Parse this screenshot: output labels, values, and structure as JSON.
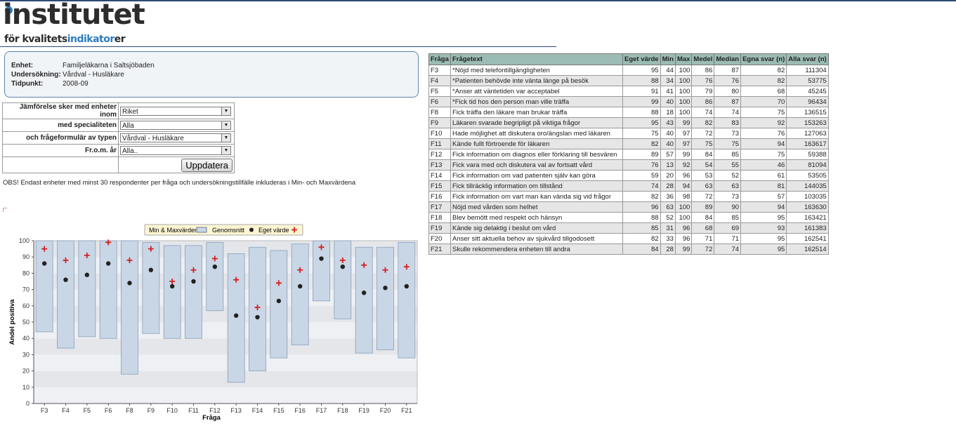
{
  "logo": {
    "top": "institutet",
    "small_prefix": "för kvalitets",
    "small_highlight": "indikator",
    "small_suffix": "er"
  },
  "info": {
    "enhet_label": "Enhet:",
    "enhet": "Familjeläkarna i Saltsjöbaden",
    "undersokning_label": "Undersökning:",
    "undersokning": "Vårdval - Husläkare",
    "tidpunkt_label": "Tidpunkt:",
    "tidpunkt": "2008-09"
  },
  "filters": [
    {
      "label": "Jämförelse sker med enheter inom",
      "value": "Riket"
    },
    {
      "label": "med specialiteten",
      "value": "Alla"
    },
    {
      "label": "och frågeformulär av typen",
      "value": "Vårdval - Husläkare"
    },
    {
      "label": "Fr.o.m. år",
      "value": "Alla.."
    }
  ],
  "update_button": "Uppdatera",
  "note": "OBS! Endast enheter med minst 30 respondenter per fråga och undersökningstillfälle inkluderas i Min- och Maxvärdena",
  "chart_data": {
    "type": "bar",
    "legend": [
      "Min & Maxvärden",
      "Genomsnitt",
      "Eget värde"
    ],
    "xlabel": "Fråga",
    "ylabel": "Andel positiva",
    "ylim": [
      0,
      100
    ],
    "yticks": [
      "0",
      "10",
      "20",
      "30",
      "40",
      "50",
      "60",
      "70",
      "80",
      "90",
      "100"
    ],
    "categories": [
      "F3",
      "F4",
      "F5",
      "F6",
      "F8",
      "F9",
      "F10",
      "F11",
      "F12",
      "F13",
      "F14",
      "F15",
      "F16",
      "F17",
      "F18",
      "F19",
      "F20",
      "F21"
    ],
    "min": [
      44,
      34,
      41,
      40,
      18,
      43,
      40,
      40,
      57,
      13,
      20,
      28,
      36,
      63,
      52,
      31,
      33,
      28
    ],
    "max": [
      100,
      100,
      100,
      100,
      100,
      99,
      97,
      97,
      99,
      92,
      96,
      94,
      98,
      100,
      100,
      96,
      96,
      99
    ],
    "mean": [
      86,
      76,
      79,
      86,
      74,
      82,
      72,
      75,
      84,
      54,
      53,
      63,
      72,
      89,
      84,
      68,
      71,
      72
    ],
    "own": [
      95,
      88,
      91,
      99,
      88,
      95,
      75,
      82,
      89,
      76,
      59,
      74,
      82,
      96,
      88,
      85,
      82,
      84
    ],
    "colors": {
      "range": "#c8d6e6",
      "mean": "#222222",
      "own": "#d42020"
    }
  },
  "table": {
    "headers": [
      "Fråga",
      "Frågetext",
      "Eget värde",
      "Min",
      "Max",
      "Medel",
      "Median",
      "Egna svar (n)",
      "Alla svar (n)"
    ],
    "rows": [
      [
        "F3",
        "*Nöjd med telefontillgängligheten",
        "95",
        "44",
        "100",
        "86",
        "87",
        "82",
        "111304"
      ],
      [
        "F4",
        "*Patienten behövde inte vänta länge på besök",
        "88",
        "34",
        "100",
        "76",
        "76",
        "82",
        "53775"
      ],
      [
        "F5",
        "*Anser att väntetiden var acceptabel",
        "91",
        "41",
        "100",
        "79",
        "80",
        "68",
        "45245"
      ],
      [
        "F6",
        "*Fick tid hos den person man ville träffa",
        "99",
        "40",
        "100",
        "86",
        "87",
        "70",
        "96434"
      ],
      [
        "F8",
        "Fick träffa den läkare man brukar träffa",
        "88",
        "18",
        "100",
        "74",
        "74",
        "75",
        "136515"
      ],
      [
        "F9",
        "Läkaren svarade begripligt på viktiga frågor",
        "95",
        "43",
        "99",
        "82",
        "83",
        "92",
        "153263"
      ],
      [
        "F10",
        "Hade möjlighet att diskutera oro/ängslan med läkaren",
        "75",
        "40",
        "97",
        "72",
        "73",
        "76",
        "127063"
      ],
      [
        "F11",
        "Kände fullt förtroende för läkaren",
        "82",
        "40",
        "97",
        "75",
        "75",
        "94",
        "163617"
      ],
      [
        "F12",
        "Fick information om diagnos eller förklaring till besvären",
        "89",
        "57",
        "99",
        "84",
        "85",
        "75",
        "59388"
      ],
      [
        "F13",
        "Fick vara med och diskutera val av fortsatt vård",
        "76",
        "13",
        "92",
        "54",
        "55",
        "46",
        "81094"
      ],
      [
        "F14",
        "Fick information om vad patienten själv kan göra",
        "59",
        "20",
        "96",
        "53",
        "52",
        "61",
        "53505"
      ],
      [
        "F15",
        "Fick tillräcklig information om tillstånd",
        "74",
        "28",
        "94",
        "63",
        "63",
        "81",
        "144035"
      ],
      [
        "F16",
        "Fick information om vart man kan vända sig vid frågor",
        "82",
        "36",
        "98",
        "72",
        "73",
        "57",
        "103035"
      ],
      [
        "F17",
        "Nöjd med vården som helhet",
        "96",
        "63",
        "100",
        "89",
        "90",
        "94",
        "163630"
      ],
      [
        "F18",
        "Blev bemött med respekt och hänsyn",
        "88",
        "52",
        "100",
        "84",
        "85",
        "95",
        "163421"
      ],
      [
        "F19",
        "Kände sig delaktig i beslut om vård",
        "85",
        "31",
        "96",
        "68",
        "69",
        "93",
        "161383"
      ],
      [
        "F20",
        "Anser sitt aktuella behov av sjukvård tillgodosett",
        "82",
        "33",
        "96",
        "71",
        "71",
        "95",
        "162541"
      ],
      [
        "F21",
        "Skulle rekommendera enheten till andra",
        "84",
        "28",
        "99",
        "72",
        "74",
        "95",
        "162514"
      ]
    ]
  }
}
